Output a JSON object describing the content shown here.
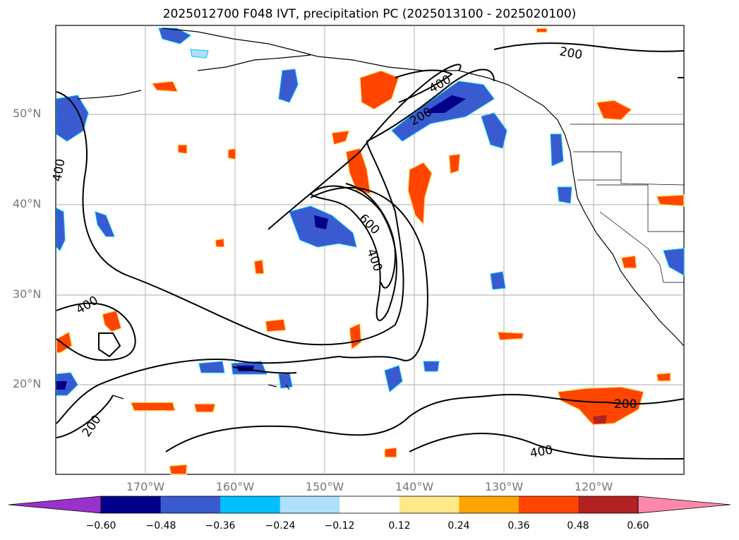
{
  "title": "2025012700 F048 IVT, precipitation PC (2025013100 - 2025020100)",
  "lat_labels": [
    "50°N",
    "40°N",
    "30°N",
    "20°N"
  ],
  "lon_labels": [
    "170°W",
    "160°W",
    "150°W",
    "140°W",
    "130°W",
    "120°W"
  ],
  "contour_labels": [
    "200",
    "400",
    "200",
    "400",
    "600",
    "400",
    "400",
    "200",
    "200",
    "400"
  ],
  "colorbar": {
    "ticks": [
      "−0.60",
      "−0.48",
      "−0.36",
      "−0.24",
      "−0.12",
      "0.12",
      "0.24",
      "0.36",
      "0.48",
      "0.60"
    ],
    "colors": [
      "#9932cc",
      "#00008b",
      "#3a5bd0",
      "#00bfff",
      "#aee0fb",
      "#ffffff",
      "#ffe88a",
      "#ffa500",
      "#ff4500",
      "#b22222",
      "#ff88aa"
    ]
  }
}
